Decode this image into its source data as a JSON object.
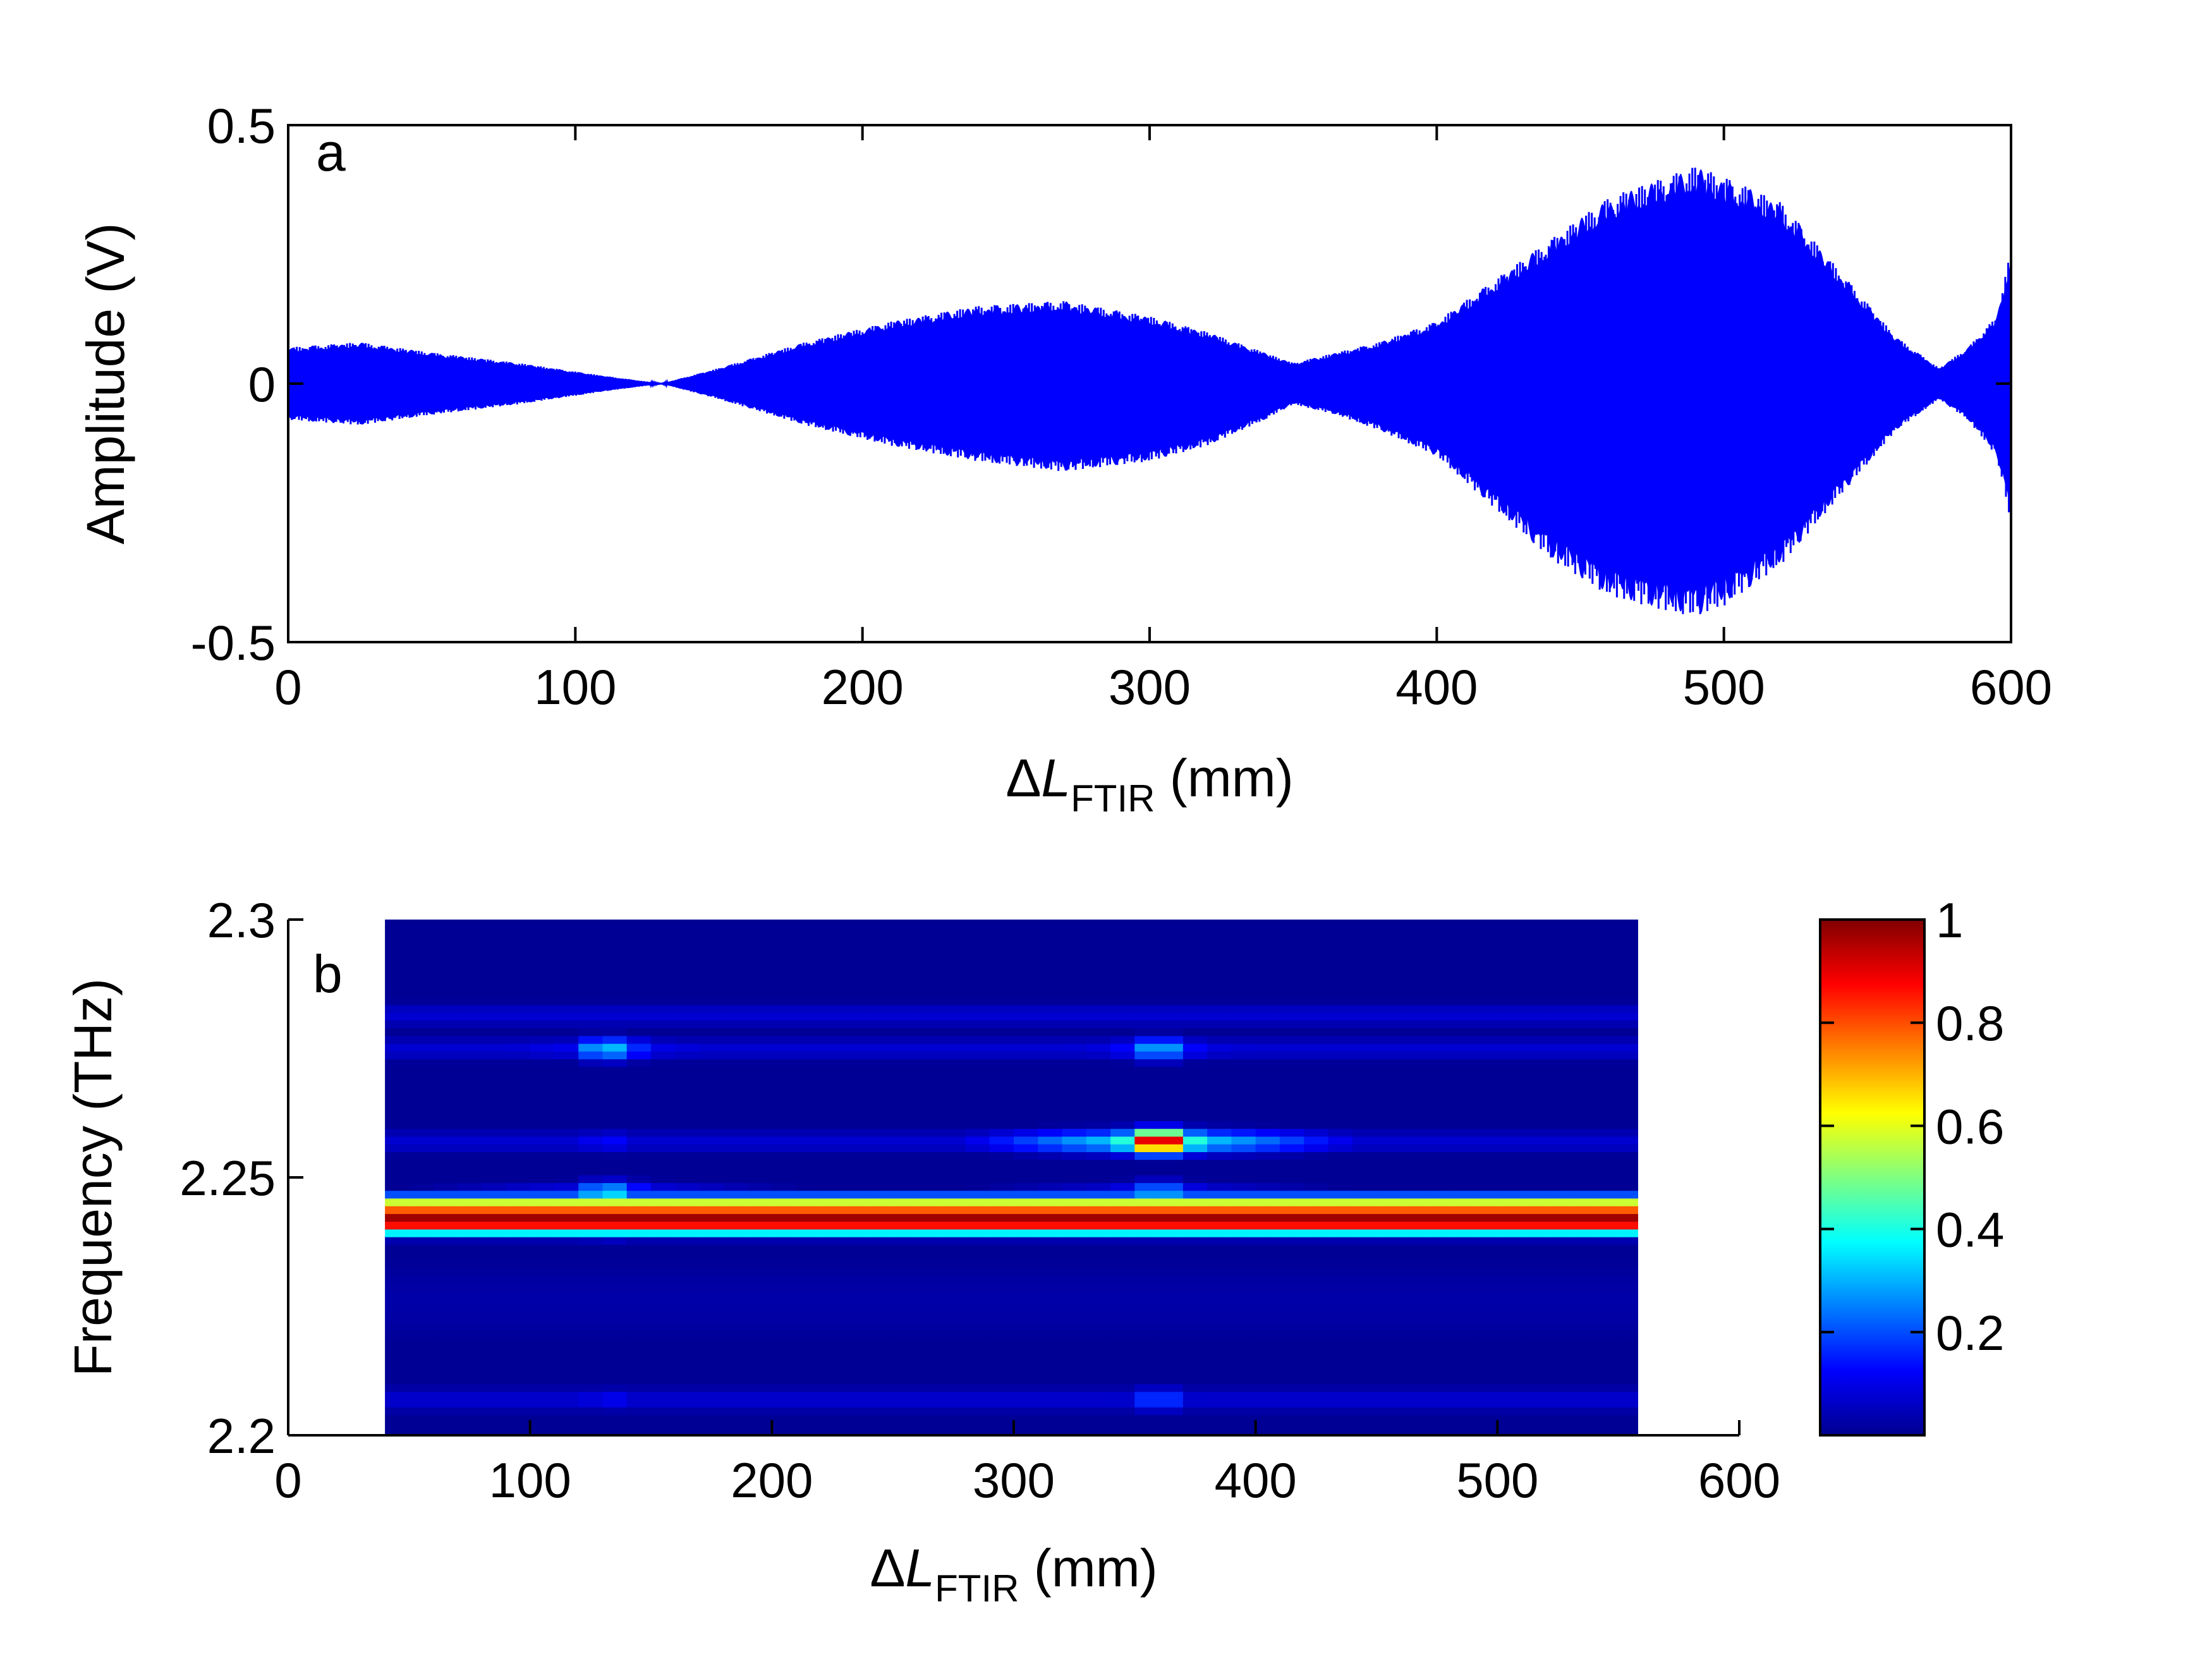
{
  "chart_data": [
    {
      "panel_label": "a",
      "type": "line",
      "xlabel": {
        "prefix": "Δ",
        "var": "L",
        "sub": "FTIR",
        "unit": " (mm)"
      },
      "ylabel": "Amplitude (V)",
      "xlim": [
        0,
        600
      ],
      "ylim": [
        -0.5,
        0.5
      ],
      "xticks": [
        "0",
        "100",
        "200",
        "300",
        "400",
        "500",
        "600"
      ],
      "yticks": [
        "-0.5",
        "0",
        "0.5"
      ],
      "grid": false,
      "series": [
        {
          "color": "#0000ff",
          "envelope": {
            "x": [
              0,
              25,
              50,
              80,
              110,
              130,
              150,
              180,
              210,
              240,
              270,
              300,
              320,
              340,
              350,
              365,
              380,
              400,
              420,
              440,
              460,
              480,
              490,
              500,
              520,
              540,
              560,
              575,
              585,
              595,
              600
            ],
            "upper": [
              0.07,
              0.08,
              0.06,
              0.04,
              0.015,
              0.0,
              0.03,
              0.08,
              0.12,
              0.15,
              0.16,
              0.13,
              0.1,
              0.06,
              0.04,
              0.06,
              0.08,
              0.12,
              0.2,
              0.28,
              0.36,
              0.4,
              0.42,
              0.4,
              0.35,
              0.22,
              0.09,
              0.03,
              0.07,
              0.13,
              0.26
            ],
            "lower": [
              -0.07,
              -0.08,
              -0.06,
              -0.04,
              -0.015,
              0.0,
              -0.03,
              -0.08,
              -0.12,
              -0.15,
              -0.17,
              -0.15,
              -0.12,
              -0.07,
              -0.04,
              -0.06,
              -0.09,
              -0.14,
              -0.24,
              -0.34,
              -0.41,
              -0.44,
              -0.45,
              -0.43,
              -0.35,
              -0.22,
              -0.09,
              -0.03,
              -0.07,
              -0.14,
              -0.27
            ]
          }
        }
      ]
    },
    {
      "panel_label": "b",
      "type": "heatmap",
      "xlabel": {
        "prefix": "Δ",
        "var": "L",
        "sub": "FTIR",
        "unit": " (mm)"
      },
      "ylabel": "Frequency (THz)",
      "xlim": [
        0,
        600
      ],
      "ylim": [
        2.2,
        2.3
      ],
      "xticks": [
        "0",
        "100",
        "200",
        "300",
        "400",
        "500",
        "600"
      ],
      "yticks": [
        "2.2",
        "2.25",
        "2.3"
      ],
      "data_x_range": [
        40,
        560
      ],
      "data_y_range": [
        2.198,
        2.3
      ],
      "colormap": "jet",
      "colorbar": {
        "range": [
          0,
          1
        ],
        "ticks": [
          "0.2",
          "0.4",
          "0.6",
          "0.8",
          "1"
        ]
      },
      "bands": [
        {
          "freq": 2.2455,
          "width": 0.0012,
          "level": 0.6
        },
        {
          "freq": 2.244,
          "width": 0.0012,
          "level": 0.82
        },
        {
          "freq": 2.2425,
          "width": 0.0014,
          "level": 1.0
        },
        {
          "freq": 2.241,
          "width": 0.0012,
          "level": 0.9
        },
        {
          "freq": 2.2395,
          "width": 0.0012,
          "level": 0.38
        },
        {
          "freq": 2.226,
          "width": 0.01,
          "level": 0.04
        }
      ],
      "spots": [
        {
          "x": 132,
          "freq": 2.2815,
          "level": 0.06
        },
        {
          "x": 132,
          "freq": 2.275,
          "level": 0.32
        },
        {
          "x": 132,
          "freq": 2.257,
          "level": 0.13
        },
        {
          "x": 132,
          "freq": 2.207,
          "level": 0.12
        },
        {
          "x": 132,
          "freq": 2.247,
          "level": 0.35
        },
        {
          "x": 132,
          "freq": 2.241,
          "level": 0.55
        },
        {
          "x": 360,
          "freq": 2.2815,
          "level": 0.08
        },
        {
          "x": 360,
          "freq": 2.275,
          "level": 0.3
        },
        {
          "x": 360,
          "freq": 2.257,
          "level": 1.0
        },
        {
          "x": 360,
          "freq": 2.207,
          "level": 0.2
        },
        {
          "x": 360,
          "freq": 2.247,
          "level": 0.3
        },
        {
          "x": 360,
          "freq": 2.242,
          "level": 0.1
        }
      ]
    }
  ]
}
